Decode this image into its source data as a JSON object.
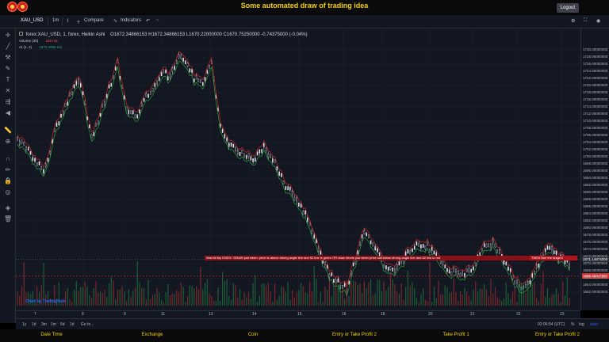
{
  "header": {
    "title": "Some automated draw of trading idea",
    "logout_label": "Logout"
  },
  "toolbar": {
    "symbol": "XAU_USD",
    "interval": "1m",
    "compare_label": "Compare",
    "indicators_label": "Indicators"
  },
  "legend": {
    "main": "forex:XAU_USD, 1, forex, Heikin Ashi",
    "ohlc": "O1672.34866153  H1672.34866153  L1670.22000000  C1670.75250000  -0.74375000 (-0.04%)",
    "volume_label": "Volume (20)",
    "volume_values": "248  n/a",
    "al_label": "AI (1, 1)",
    "al_values": "1672.0059  n/a"
  },
  "y_axis": {
    "labels": [
      "1730.00000000",
      "1728.00000000",
      "1726.00000000",
      "1724.00000000",
      "1722.00000000",
      "1720.00000000",
      "1718.00000000",
      "1716.00000000",
      "1714.00000000",
      "1712.00000000",
      "1710.00000000",
      "1708.00000000",
      "1706.00000000",
      "1704.00000000",
      "1702.00000000",
      "1700.00000000",
      "1698.00000000",
      "1696.00000000",
      "1694.00000000",
      "1692.00000000",
      "1690.00000000",
      "1688.00000000",
      "1686.00000000",
      "1684.00000000",
      "1682.00000000",
      "1680.00000000",
      "1678.00000000",
      "1676.00000000",
      "1674.00000000",
      "1672.00000000",
      "1670.00000000",
      "1668.00000000",
      "1666.00000000",
      "1664.00000000",
      "1662.00000000"
    ],
    "current_price": "1671.14874000",
    "line_price": "1666.49447057"
  },
  "x_axis": {
    "labels": [
      "7",
      "8",
      "9",
      "11",
      "13",
      "14",
      "15",
      "16",
      "18",
      "20",
      "21",
      "22",
      "23"
    ]
  },
  "bottom_toolbar": {
    "ranges": [
      "1y",
      "1d",
      "3m",
      "1m",
      "5d",
      "1d"
    ],
    "goto_label": "Go to...",
    "time": "02:06:54 (UTC)",
    "percent": "%",
    "log": "log",
    "auto": "auto"
  },
  "annotations": {
    "banner_text": "Wait till flip ENDS !     DRAW just when: price is above strong angle line and 62 line is green     OR     draw shorts just when price still below strong angle line and 62 line is red",
    "banner_right": "THEN See the magic!!"
  },
  "watermark": "Chart by TradingView",
  "footer": {
    "items": [
      "Date Time",
      "Exchange",
      "Coin",
      "Entry or Take Profit 2",
      "Take Profit 1",
      "Entry or Take Profit 2"
    ]
  },
  "colors": {
    "accent": "#f5d000",
    "background": "#131722",
    "up": "#26a69a",
    "down": "#ef5350",
    "banner": "#b3141c"
  }
}
